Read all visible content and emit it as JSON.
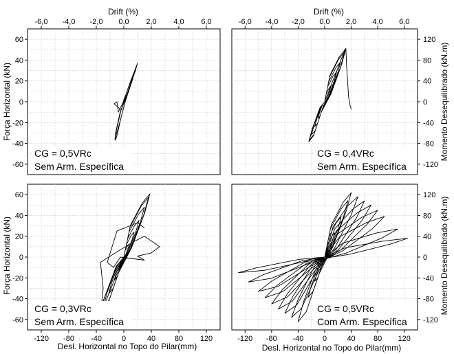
{
  "figure": {
    "top_axis_label": "Drift (%)",
    "bottom_axis_label": "Desl. Horizontal no Topo do Pilar(mm)",
    "left_axis_label": "Força Horizontal (kN)",
    "right_axis_label": "Momento Desequilibrado (kN.m)"
  },
  "axes": {
    "x_ticks": [
      "-120",
      "-80",
      "-40",
      "0",
      "40",
      "80",
      "120"
    ],
    "drift_ticks": [
      "-6,0",
      "-4,0",
      "-2,0",
      "0,0",
      "2,0",
      "4,0",
      "6,0"
    ],
    "force_ticks_top": [
      "60",
      "40",
      "20",
      "0",
      "-20",
      "-40",
      "-60"
    ],
    "force_ticks_bottom": [
      "60",
      "40",
      "20",
      "0",
      "-20",
      "-40",
      "-60"
    ],
    "moment_ticks": [
      "120",
      "80",
      "40",
      "0",
      "-40",
      "-80",
      "-120"
    ],
    "xlim_mm": [
      -140,
      140
    ],
    "force_lim_kN": [
      -70,
      70
    ],
    "moment_lim_kNm": [
      -140,
      140
    ],
    "drift_lim_percent": [
      -7,
      7
    ]
  },
  "chart_data": [
    {
      "type": "line",
      "panel": "top-left",
      "annotation_line1": "CG = 0,5VRc",
      "annotation_line2": "Sem Arm. Específica",
      "peak_positive": {
        "x_mm": 20,
        "force_kN": 37
      },
      "peak_negative": {
        "x_mm": -12,
        "force_kN": -37
      },
      "color": "#000000"
    },
    {
      "type": "line",
      "panel": "top-right",
      "annotation_line1": "CG = 0,4VRc",
      "annotation_line2": "Sem Arm. Específica",
      "peak_positive": {
        "x_mm": 30,
        "moment_kNm": 102
      },
      "peak_negative": {
        "x_mm": -23,
        "moment_kNm": -93
      },
      "end_point": {
        "x_mm": 40,
        "moment_kNm": -15
      },
      "color": "#000000"
    },
    {
      "type": "line",
      "panel": "bottom-left",
      "annotation_line1": "CG = 0,3VRc",
      "annotation_line2": "Sem Arm. Específica",
      "peak_positive": {
        "x_mm": 38,
        "force_kN": 61
      },
      "peak_negative": {
        "x_mm": -37,
        "force_kN": -57
      },
      "end_point": {
        "x_mm": 52,
        "force_kN": 10
      },
      "color": "#000000"
    },
    {
      "type": "line",
      "panel": "bottom-right",
      "annotation_line1": "CG = 0,5VRc",
      "annotation_line2": "Com Arm. Específica",
      "peak_positive": {
        "x_mm": 35,
        "moment_kNm": 125
      },
      "peak_negative": {
        "x_mm": -70,
        "moment_kNm": -122
      },
      "max_displacement_mm": 125,
      "min_displacement_mm": -130,
      "color": "#000000"
    }
  ]
}
